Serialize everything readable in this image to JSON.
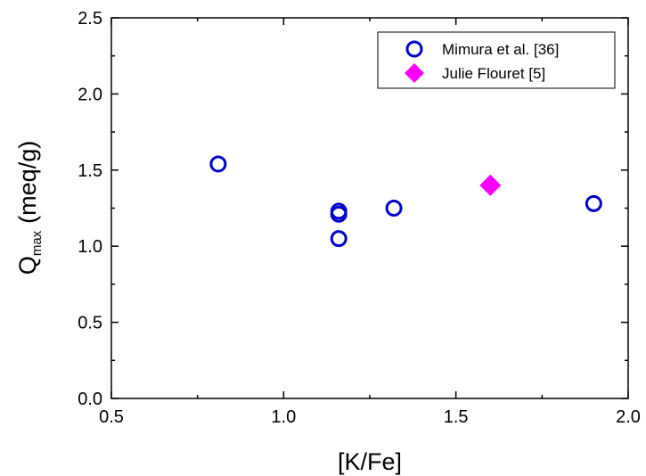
{
  "chart_data": {
    "type": "scatter",
    "xlabel": "[K/Fe]",
    "ylabel_main": "Q",
    "ylabel_sub": "max",
    "ylabel_unit": "(meq/g)",
    "xlim": [
      0.5,
      2.0
    ],
    "ylim": [
      0.0,
      2.5
    ],
    "x_ticks": [
      "0.5",
      "1.0",
      "1.5",
      "2.0"
    ],
    "y_ticks": [
      "0.0",
      "0.5",
      "1.0",
      "1.5",
      "2.0",
      "2.5"
    ],
    "grid": false,
    "legend_position": "top-right",
    "series": [
      {
        "name": "Mimura et al. [36]",
        "marker": "circle-open",
        "color": "#0000cc",
        "points": [
          {
            "x": 0.81,
            "y": 1.54
          },
          {
            "x": 1.16,
            "y": 1.23
          },
          {
            "x": 1.16,
            "y": 1.21
          },
          {
            "x": 1.16,
            "y": 1.05
          },
          {
            "x": 1.32,
            "y": 1.25
          },
          {
            "x": 1.9,
            "y": 1.28
          }
        ]
      },
      {
        "name": "Julie Flouret [5]",
        "marker": "diamond-filled",
        "color": "#ff00ff",
        "points": [
          {
            "x": 1.6,
            "y": 1.4
          }
        ]
      }
    ]
  }
}
